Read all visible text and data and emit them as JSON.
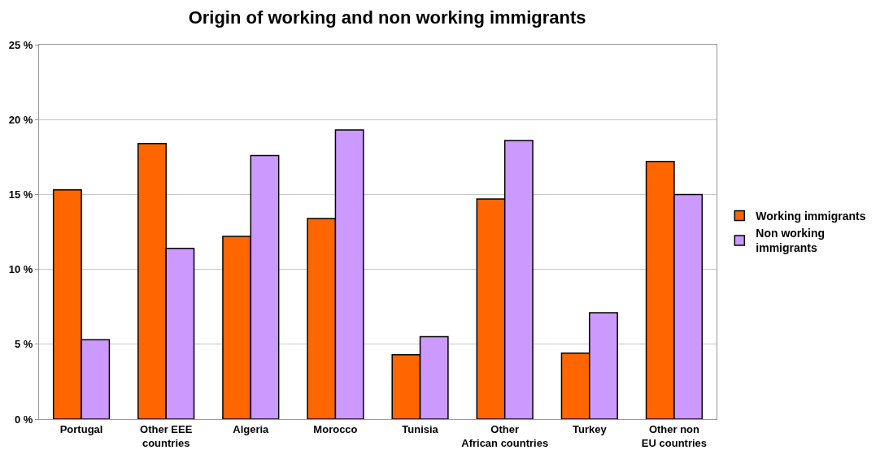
{
  "chart_data": {
    "type": "bar",
    "title": "Origin of working and non working immigrants",
    "categories": [
      "Portugal",
      "Other EEE\ncountries",
      "Algeria",
      "Morocco",
      "Tunisia",
      "Other\nAfrican countries",
      "Turkey",
      "Other non\nEU countries"
    ],
    "series": [
      {
        "name": "Working immigrants",
        "color": "#ff6600",
        "values": [
          15.3,
          18.4,
          12.2,
          13.4,
          4.3,
          14.7,
          4.4,
          17.2
        ]
      },
      {
        "name": "Non working\nimmigrants",
        "color": "#cc99ff",
        "values": [
          5.3,
          11.4,
          17.6,
          19.3,
          5.5,
          18.6,
          7.1,
          15.0
        ]
      }
    ],
    "ylim": [
      0,
      25
    ],
    "yticks": [
      {
        "value": 0,
        "label": "0 %"
      },
      {
        "value": 5,
        "label": "5 %"
      },
      {
        "value": 10,
        "label": "10 %"
      },
      {
        "value": 15,
        "label": "15 %"
      },
      {
        "value": 20,
        "label": "20 %"
      },
      {
        "value": 25,
        "label": "25 %"
      }
    ],
    "grid": "y",
    "legend": "right"
  }
}
